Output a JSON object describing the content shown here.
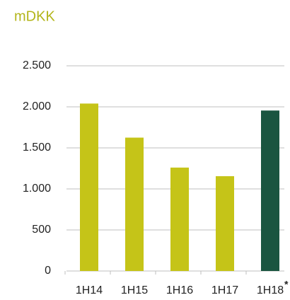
{
  "chart_data": {
    "type": "bar",
    "title": "mDKK",
    "categories": [
      "1H14",
      "1H15",
      "1H16",
      "1H17",
      "1H18"
    ],
    "values": [
      2040,
      1625,
      1260,
      1155,
      1955
    ],
    "colors": [
      "#c5c418",
      "#c5c418",
      "#c5c418",
      "#c5c418",
      "#1a5540"
    ],
    "annotation": "*",
    "ylim": [
      0,
      2500
    ],
    "yticks": [
      0,
      500,
      {
        "value": 1000,
        "label": "1.000"
      },
      {
        "value": 1500,
        "label": "1.500"
      },
      {
        "value": 2000,
        "label": "2.000"
      },
      {
        "value": 2500,
        "label": "2.500"
      }
    ],
    "grid": true
  }
}
